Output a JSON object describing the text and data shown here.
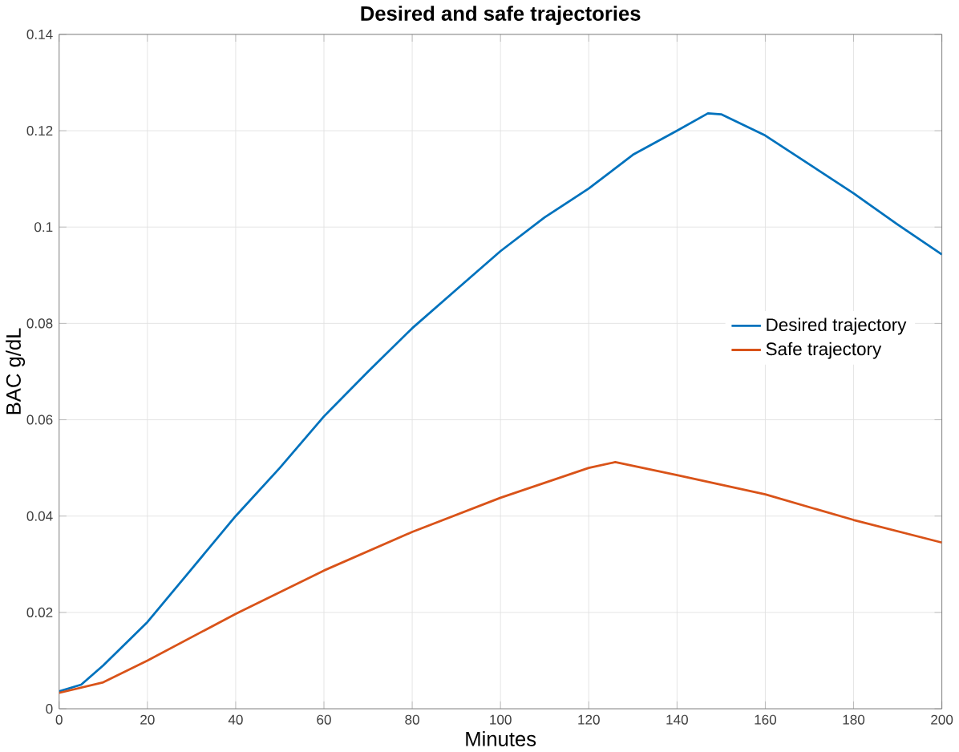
{
  "chart_data": {
    "type": "line",
    "title": "Desired and safe trajectories",
    "xlabel": "Minutes",
    "ylabel": "BAC g/dL",
    "xlim": [
      0,
      200
    ],
    "ylim": [
      0,
      0.14
    ],
    "xticks": [
      0,
      20,
      40,
      60,
      80,
      100,
      120,
      140,
      160,
      180,
      200
    ],
    "yticks": [
      0,
      0.02,
      0.04,
      0.06,
      0.08,
      0.1,
      0.12,
      0.14
    ],
    "grid": true,
    "legend": "right",
    "marker": "none",
    "line_style": "solid",
    "series": [
      {
        "name": "Desired trajectory",
        "color": "#0072bd",
        "x": [
          0,
          5,
          10,
          20,
          30,
          40,
          50,
          60,
          70,
          80,
          90,
          100,
          110,
          120,
          130,
          140,
          147,
          150,
          160,
          170,
          180,
          190,
          200
        ],
        "values": [
          0.0036,
          0.005,
          0.009,
          0.018,
          0.029,
          0.04,
          0.05,
          0.0607,
          0.07,
          0.079,
          0.087,
          0.095,
          0.102,
          0.108,
          0.115,
          0.12,
          0.1236,
          0.1234,
          0.119,
          0.113,
          0.107,
          0.1005,
          0.0943
        ]
      },
      {
        "name": "Safe trajectory",
        "color": "#d95319",
        "x": [
          0,
          10,
          20,
          40,
          60,
          80,
          100,
          120,
          126,
          140,
          160,
          180,
          200
        ],
        "values": [
          0.0033,
          0.0055,
          0.01,
          0.0197,
          0.0287,
          0.0367,
          0.0438,
          0.05,
          0.0512,
          0.0485,
          0.0445,
          0.0392,
          0.0345
        ]
      }
    ]
  }
}
